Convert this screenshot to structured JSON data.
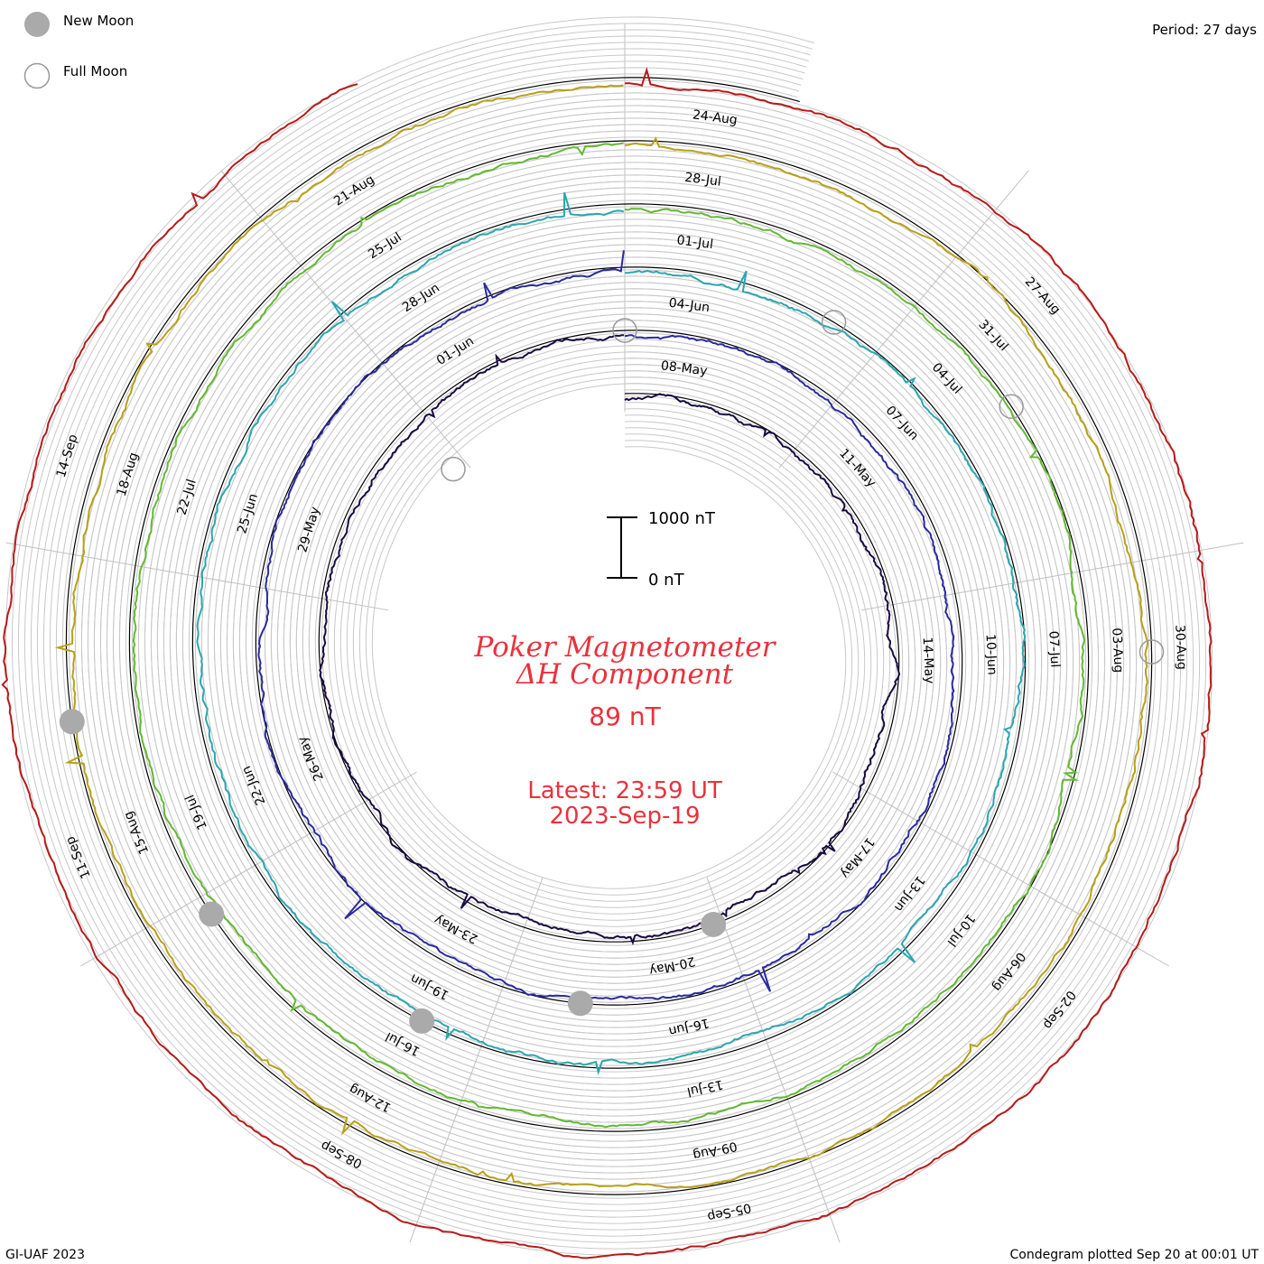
{
  "legend": {
    "new_moon_label": "New Moon",
    "full_moon_label": "Full Moon",
    "new_moon_color": "#aaaaaa",
    "full_moon_color": "#999999"
  },
  "period_label": "Period: 27 days",
  "scale_bar": {
    "top_label": "1000 nT",
    "bottom_label": "0 nT"
  },
  "title": {
    "line1": "Poker Magnetometer",
    "line2": "ΔH Component"
  },
  "current_value": "89 nT",
  "latest": {
    "line1": "Latest: 23:59 UT",
    "line2": "2023-Sep-19"
  },
  "footer": {
    "left": "GI-UAF 2023",
    "right": "Condegram plotted Sep 20 at 00:01 UT"
  },
  "chart_data": {
    "type": "line",
    "layout": "spiral",
    "title": "Poker Magnetometer ΔH Component",
    "period_days": 27,
    "units": "nT",
    "grid": true,
    "rings": [
      {
        "start": "08-May",
        "color": "#1a0a40",
        "date_labels": [
          "08-May",
          "11-May",
          "14-May",
          "17-May",
          "20-May",
          "23-May",
          "26-May",
          "29-May",
          "01-Jun"
        ]
      },
      {
        "start": "04-Jun",
        "color": "#2a2aa0",
        "date_labels": [
          "04-Jun",
          "07-Jun",
          "10-Jun",
          "13-Jun",
          "16-Jun",
          "19-Jun",
          "22-Jun",
          "25-Jun",
          "28-Jun"
        ]
      },
      {
        "start": "01-Jul",
        "color": "#2aa6b0",
        "date_labels": [
          "01-Jul",
          "04-Jul",
          "07-Jul",
          "10-Jul",
          "13-Jul",
          "16-Jul",
          "19-Jul",
          "22-Jul",
          "25-Jul"
        ]
      },
      {
        "start": "28-Jul",
        "color": "#64b832",
        "date_labels": [
          "28-Jul",
          "31-Jul",
          "03-Aug",
          "06-Aug",
          "09-Aug",
          "12-Aug",
          "15-Aug",
          "18-Aug",
          "21-Aug"
        ]
      },
      {
        "start": "24-Aug",
        "color": "#b8a018",
        "date_labels": [
          "24-Aug",
          "27-Aug",
          "30-Aug",
          "02-Sep",
          "05-Sep",
          "08-Sep",
          "11-Sep",
          "14-Sep"
        ]
      }
    ],
    "final_segment_color": "#b81a1a",
    "new_moon_days": [
      "20-May",
      "18-Jun",
      "17-Jul",
      "16-Aug",
      "14-Sep"
    ],
    "full_moon_days": [
      "05-May",
      "04-Jun",
      "03-Jul",
      "01-Aug",
      "30-Aug"
    ]
  }
}
